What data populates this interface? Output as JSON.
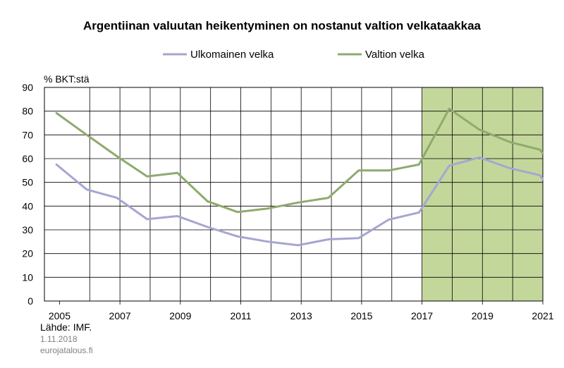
{
  "chart_data": {
    "type": "line",
    "title": "Argentiinan valuutan heikentyminen on nostanut valtion velkataakkaa",
    "ylabel": "% BKT:stä",
    "xlabel": "",
    "ylim": [
      0,
      90
    ],
    "xlim": [
      2004.5,
      2021
    ],
    "y_ticks": [
      0,
      10,
      20,
      30,
      40,
      50,
      60,
      70,
      80,
      90
    ],
    "x_tick_labels": [
      "2005",
      "2007",
      "2009",
      "2011",
      "2013",
      "2015",
      "2017",
      "2019",
      "2021"
    ],
    "x_tick_values": [
      2005,
      2007,
      2009,
      2011,
      2013,
      2015,
      2017,
      2019,
      2021
    ],
    "grid": true,
    "legend_position": "top",
    "forecast_from": 2017,
    "forecast_color": "#c4d79b",
    "series": [
      {
        "name": "Ulkomainen velka",
        "color": "#a6a6d2",
        "x": [
          2004.9,
          2005.9,
          2006.9,
          2007.9,
          2008.9,
          2009.9,
          2010.9,
          2011.9,
          2012.9,
          2013.9,
          2014.9,
          2015.9,
          2016.9,
          2017.9,
          2018.9,
          2019.9,
          2020.9,
          2021
        ],
        "values": [
          57.5,
          47,
          43.5,
          34.5,
          35.8,
          31.2,
          27.2,
          25,
          23.5,
          26,
          26.5,
          34.3,
          37.3,
          57,
          60.5,
          56,
          53,
          51.3
        ]
      },
      {
        "name": "Valtion velka",
        "color": "#8eaa6e",
        "x": [
          2004.9,
          2005.9,
          2006.9,
          2007.9,
          2008.9,
          2009.9,
          2010.9,
          2011.9,
          2012.9,
          2013.9,
          2014.9,
          2015.9,
          2016.9,
          2017.9,
          2018.9,
          2019.9,
          2020.9,
          2021
        ],
        "values": [
          79.2,
          70,
          61,
          52.5,
          54,
          42,
          37.5,
          39,
          41.5,
          43.5,
          55,
          55,
          57.5,
          81,
          72.2,
          67,
          63.8,
          62.2
        ]
      }
    ]
  },
  "footer": {
    "source": "Lähde: IMF.",
    "date": "1.11.2018",
    "site": "eurojatalous.fi"
  }
}
